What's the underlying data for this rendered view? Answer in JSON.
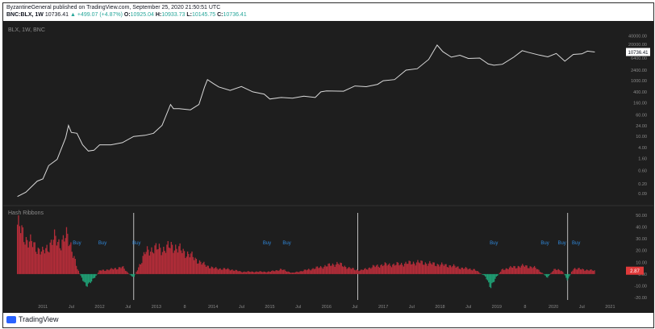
{
  "header": {
    "publisher_line": "ByzantineGeneral published on TradingView.com, September 25, 2020 21:50:51 UTC",
    "symbol_line": "BNC:BLX, 1W",
    "last": "10736.41",
    "change": "▲ +499.07 (+4.87%)",
    "o_label": "O:",
    "o_value": "10925.04",
    "h_label": "H:",
    "h_value": "10933.73",
    "l_label": "L:",
    "l_value": "10145.75",
    "c_label": "C:",
    "c_value": "10736.41"
  },
  "panes": {
    "price_legend": "BLX, 1W, BNC",
    "indicator_legend": "Hash Ribbons"
  },
  "footer": {
    "brand": "TradingView"
  },
  "chart_data": [
    {
      "type": "line",
      "title": "",
      "yscale": "log",
      "price_axis_ticks": [
        "40000.00",
        "20000.00",
        "10736.41",
        "6400.00",
        "2400.00",
        "1000.00",
        "400.00",
        "160.00",
        "60.00",
        "24.00",
        "10.00",
        "4.00",
        "1.60",
        "0.60",
        "0.20",
        "0.09"
      ],
      "last_price_label": "10736.41",
      "time_axis_labels": [
        "2011",
        "Jul",
        "2012",
        "Jul",
        "2013",
        "8",
        "2014",
        "Jul",
        "2015",
        "Jul",
        "2016",
        "Jul",
        "2017",
        "Jul",
        "2018",
        "Jul",
        "2019",
        "8",
        "2020",
        "Jul",
        "2021"
      ],
      "series": [
        {
          "points": [
            [
              2010.55,
              0.07
            ],
            [
              2010.7,
              0.1
            ],
            [
              2010.9,
              0.25
            ],
            [
              2011.0,
              0.3
            ],
            [
              2011.1,
              0.9
            ],
            [
              2011.25,
              1.5
            ],
            [
              2011.4,
              9
            ],
            [
              2011.45,
              25
            ],
            [
              2011.5,
              14
            ],
            [
              2011.6,
              13
            ],
            [
              2011.7,
              5
            ],
            [
              2011.8,
              3
            ],
            [
              2011.9,
              3.2
            ],
            [
              2012.0,
              5
            ],
            [
              2012.2,
              5
            ],
            [
              2012.4,
              6
            ],
            [
              2012.6,
              10
            ],
            [
              2012.8,
              11
            ],
            [
              2012.95,
              13
            ],
            [
              2013.1,
              25
            ],
            [
              2013.25,
              140
            ],
            [
              2013.3,
              100
            ],
            [
              2013.4,
              100
            ],
            [
              2013.6,
              90
            ],
            [
              2013.75,
              140
            ],
            [
              2013.85,
              600
            ],
            [
              2013.9,
              1100
            ],
            [
              2014.0,
              800
            ],
            [
              2014.1,
              600
            ],
            [
              2014.3,
              450
            ],
            [
              2014.5,
              620
            ],
            [
              2014.7,
              400
            ],
            [
              2014.9,
              330
            ],
            [
              2015.0,
              220
            ],
            [
              2015.2,
              250
            ],
            [
              2015.4,
              235
            ],
            [
              2015.6,
              280
            ],
            [
              2015.8,
              250
            ],
            [
              2015.9,
              400
            ],
            [
              2016.0,
              430
            ],
            [
              2016.3,
              420
            ],
            [
              2016.5,
              650
            ],
            [
              2016.7,
              610
            ],
            [
              2016.9,
              740
            ],
            [
              2017.0,
              1000
            ],
            [
              2017.2,
              1100
            ],
            [
              2017.4,
              2400
            ],
            [
              2017.6,
              2700
            ],
            [
              2017.8,
              5800
            ],
            [
              2017.95,
              19000
            ],
            [
              2018.05,
              11000
            ],
            [
              2018.2,
              7000
            ],
            [
              2018.35,
              8200
            ],
            [
              2018.5,
              6300
            ],
            [
              2018.7,
              6500
            ],
            [
              2018.85,
              4000
            ],
            [
              2018.95,
              3600
            ],
            [
              2019.1,
              3900
            ],
            [
              2019.3,
              7000
            ],
            [
              2019.45,
              12000
            ],
            [
              2019.55,
              10500
            ],
            [
              2019.75,
              8300
            ],
            [
              2019.9,
              7200
            ],
            [
              2020.05,
              9500
            ],
            [
              2020.2,
              5000
            ],
            [
              2020.35,
              8800
            ],
            [
              2020.5,
              9200
            ],
            [
              2020.6,
              11500
            ],
            [
              2020.73,
              10736
            ]
          ]
        }
      ]
    },
    {
      "type": "bar",
      "title": "",
      "axis_ticks": [
        "50.00",
        "40.00",
        "30.00",
        "20.00",
        "10.00",
        "0.00",
        "-10.00",
        "-20.00"
      ],
      "current_value_label": "2.87",
      "buy_label": "Buy",
      "buy_signals": [
        2011.6,
        2012.05,
        2012.65,
        2014.95,
        2015.3,
        2018.95,
        2019.85,
        2020.15,
        2020.4
      ],
      "vertical_markers": [
        2012.6,
        2016.55,
        2020.25
      ],
      "series": [
        {
          "points": [
            [
              2010.55,
              42
            ],
            [
              2010.7,
              30
            ],
            [
              2010.9,
              22
            ],
            [
              2011.0,
              18
            ],
            [
              2011.1,
              24
            ],
            [
              2011.2,
              30
            ],
            [
              2011.3,
              26
            ],
            [
              2011.42,
              32
            ],
            [
              2011.5,
              24
            ],
            [
              2011.6,
              5
            ],
            [
              2011.75,
              -10
            ],
            [
              2011.9,
              -4
            ],
            [
              2012.0,
              3
            ],
            [
              2012.2,
              4
            ],
            [
              2012.4,
              6
            ],
            [
              2012.5,
              1
            ],
            [
              2012.6,
              -3
            ],
            [
              2012.8,
              18
            ],
            [
              2012.95,
              22
            ],
            [
              2013.1,
              21
            ],
            [
              2013.3,
              24
            ],
            [
              2013.4,
              21
            ],
            [
              2013.6,
              16
            ],
            [
              2013.8,
              9
            ],
            [
              2014.0,
              5
            ],
            [
              2014.3,
              4
            ],
            [
              2014.5,
              2
            ],
            [
              2014.7,
              2
            ],
            [
              2015.0,
              2
            ],
            [
              2015.2,
              4
            ],
            [
              2015.4,
              1
            ],
            [
              2015.6,
              3
            ],
            [
              2015.8,
              5
            ],
            [
              2016.0,
              7
            ],
            [
              2016.2,
              9
            ],
            [
              2016.4,
              5
            ],
            [
              2016.6,
              3
            ],
            [
              2016.8,
              6
            ],
            [
              2017.0,
              8
            ],
            [
              2017.2,
              8
            ],
            [
              2017.4,
              9
            ],
            [
              2017.6,
              10
            ],
            [
              2017.8,
              9
            ],
            [
              2018.0,
              8
            ],
            [
              2018.2,
              7
            ],
            [
              2018.4,
              5
            ],
            [
              2018.6,
              4
            ],
            [
              2018.8,
              -2
            ],
            [
              2018.9,
              -11
            ],
            [
              2019.0,
              -2
            ],
            [
              2019.1,
              4
            ],
            [
              2019.3,
              6
            ],
            [
              2019.5,
              7
            ],
            [
              2019.7,
              5
            ],
            [
              2019.9,
              -3
            ],
            [
              2020.0,
              4
            ],
            [
              2020.15,
              3
            ],
            [
              2020.25,
              -5
            ],
            [
              2020.35,
              5
            ],
            [
              2020.5,
              4
            ],
            [
              2020.73,
              2.87
            ]
          ]
        }
      ]
    }
  ],
  "colors": {
    "background": "#1e1e1e",
    "line": "#d9d9d9",
    "positive": "#b32d39",
    "negative": "#1fa075",
    "buy": "#2f87d9",
    "axis_text": "#8a8a8a",
    "badge": "#e03a3a"
  }
}
